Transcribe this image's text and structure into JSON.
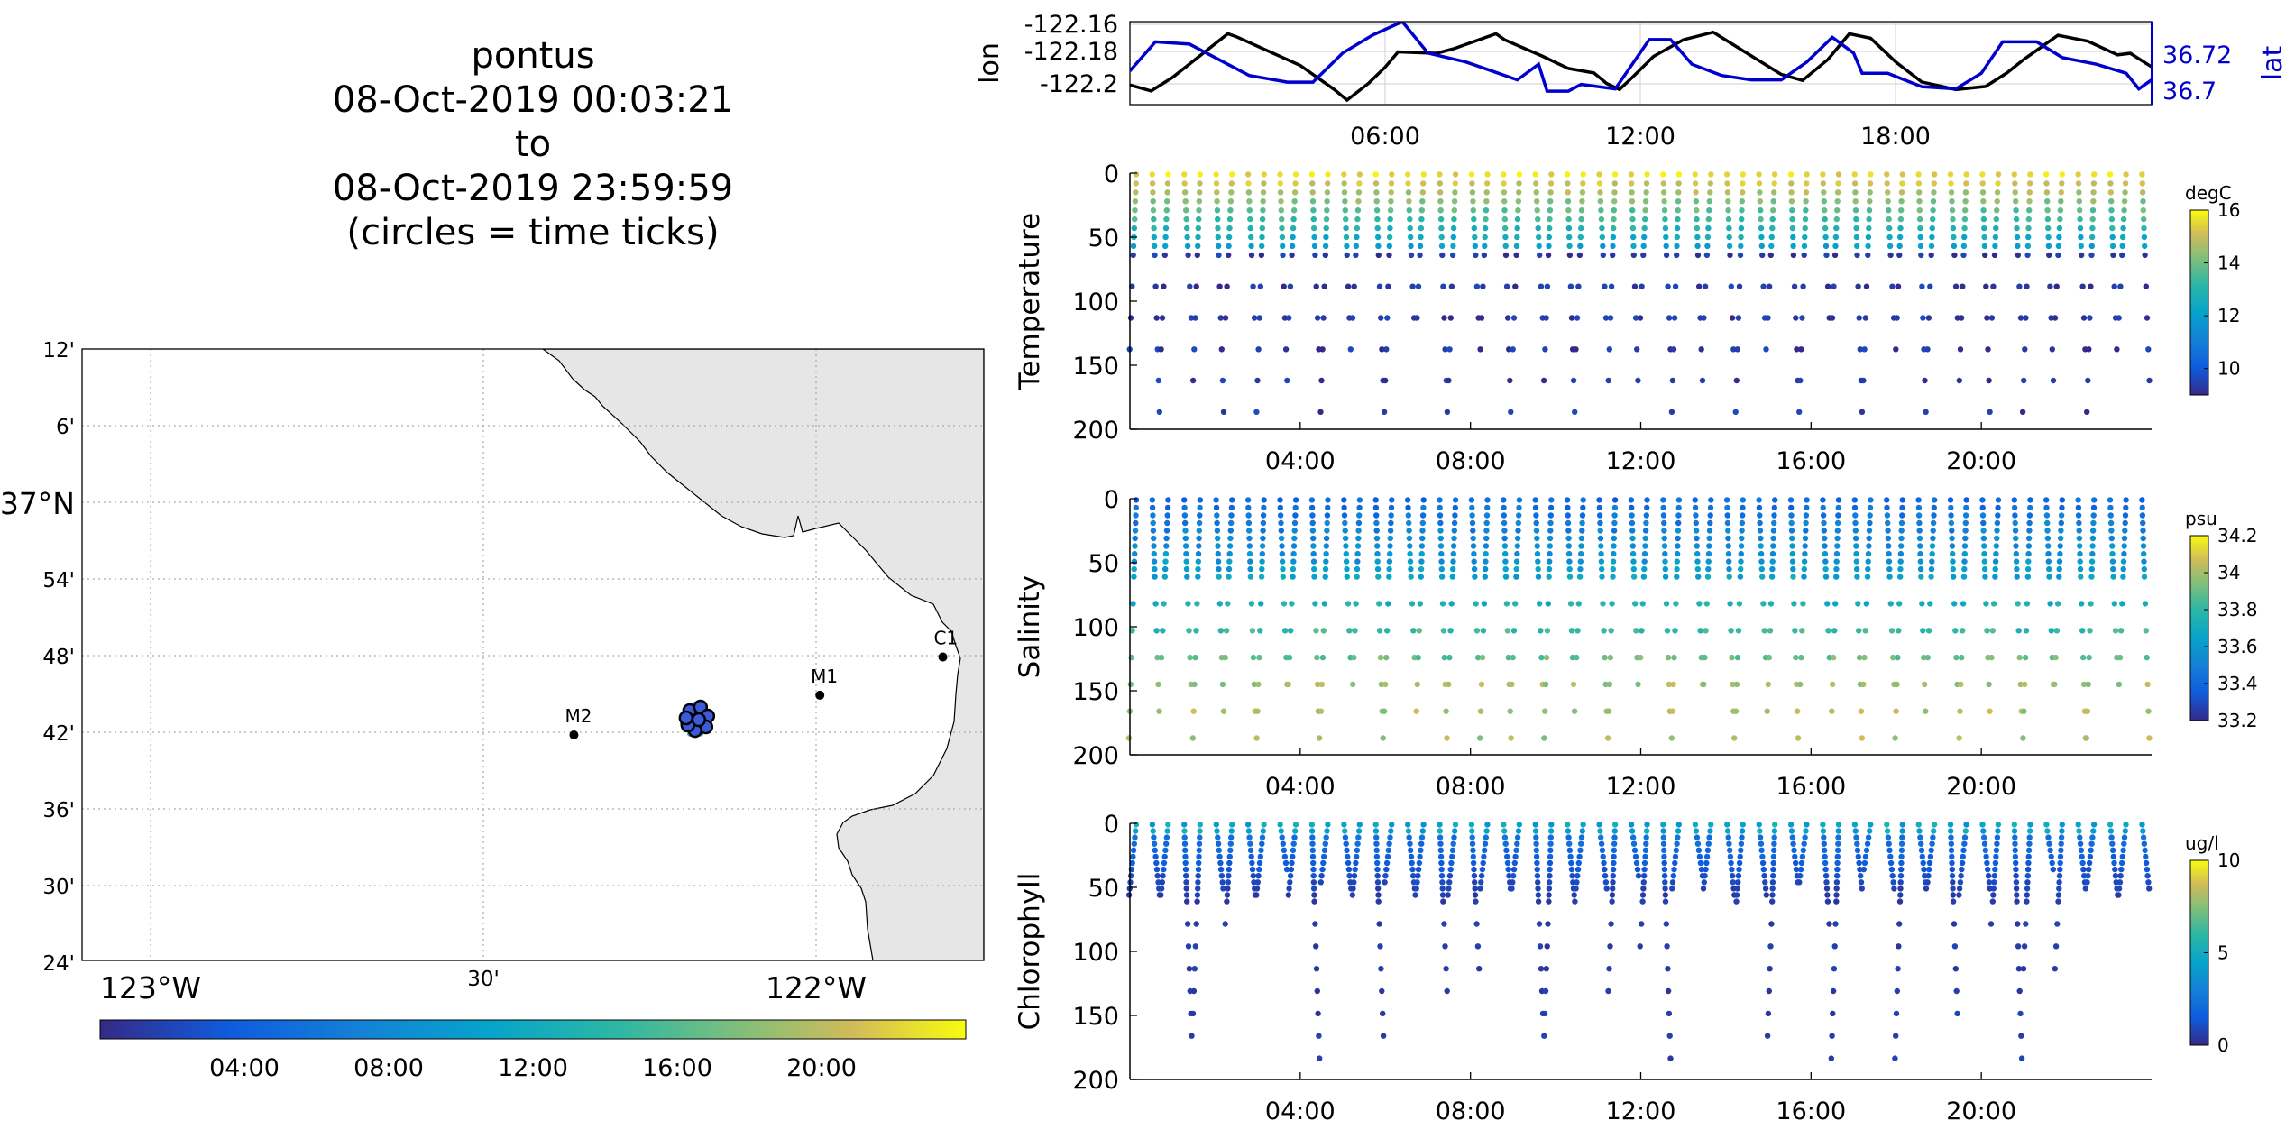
{
  "title": {
    "lines": [
      "pontus",
      "08-Oct-2019 00:03:21",
      "to",
      "08-Oct-2019 23:59:59",
      "(circles = time ticks)"
    ]
  },
  "map": {
    "lat_labels": [
      "12'",
      "6'",
      "37°N",
      "54'",
      "48'",
      "42'",
      "36'",
      "30'",
      "24'"
    ],
    "lon_labels": [
      "123°W",
      "30'",
      "122°W"
    ],
    "stations": [
      {
        "name": "M2",
        "lon": -122.38,
        "lat": 36.695
      },
      {
        "name": "M1",
        "lon": -122.02,
        "lat": 36.747
      },
      {
        "name": "C1",
        "lon": -121.84,
        "lat": 36.797
      }
    ],
    "track_center": {
      "lon": -122.2,
      "lat": 36.715
    },
    "land_color": "#e6e6e6",
    "colorbar_ticks": [
      "04:00",
      "08:00",
      "12:00",
      "16:00",
      "20:00"
    ]
  },
  "chart_data": [
    {
      "type": "line",
      "name": "position",
      "xlabel": "",
      "ylabel": "lon",
      "ylabel_right": "lat",
      "x_ticks": [
        "06:00",
        "12:00",
        "18:00"
      ],
      "y_ticks": [
        "-122.16",
        "-122.18",
        "-122.2"
      ],
      "y2_ticks": [
        "36.72",
        "36.7"
      ],
      "ylim": [
        -122.21,
        -122.155
      ],
      "y2lim": [
        36.693,
        36.73
      ],
      "xlim_hours": [
        0,
        24
      ],
      "series": [
        {
          "name": "lon",
          "color": "#000000",
          "t": [
            0,
            0.5,
            1.0,
            2.3,
            2.5,
            4.0,
            4.8,
            5.1,
            5.6,
            6.0,
            6.3,
            7.2,
            7.6,
            8.6,
            8.8,
            9.7,
            10.3,
            10.9,
            11.2,
            11.5,
            11.8,
            12.3,
            13.0,
            13.7,
            14.5,
            15.3,
            15.8,
            16.4,
            16.9,
            17.4,
            18.0,
            18.6,
            19.4,
            20.1,
            20.6,
            21.0,
            21.8,
            22.5,
            23.2,
            23.5,
            24.0
          ],
          "v": [
            -122.197,
            -122.201,
            -122.192,
            -122.163,
            -122.165,
            -122.184,
            -122.2,
            -122.207,
            -122.196,
            -122.185,
            -122.175,
            -122.176,
            -122.173,
            -122.163,
            -122.167,
            -122.178,
            -122.186,
            -122.189,
            -122.196,
            -122.2,
            -122.192,
            -122.178,
            -122.167,
            -122.162,
            -122.176,
            -122.19,
            -122.194,
            -122.18,
            -122.163,
            -122.166,
            -122.182,
            -122.195,
            -122.2,
            -122.198,
            -122.189,
            -122.18,
            -122.164,
            -122.168,
            -122.177,
            -122.176,
            -122.185
          ]
        },
        {
          "name": "lat",
          "color": "#0000cc",
          "t": [
            0,
            0.6,
            1.4,
            2.2,
            2.8,
            3.7,
            4.3,
            5.0,
            5.7,
            6.4,
            7.0,
            7.9,
            8.5,
            9.1,
            9.6,
            9.8,
            10.3,
            10.6,
            11.4,
            12.2,
            12.7,
            13.2,
            13.9,
            14.6,
            15.3,
            15.9,
            16.5,
            17.0,
            17.2,
            17.8,
            18.6,
            19.4,
            20.0,
            20.5,
            21.3,
            21.9,
            22.7,
            23.4,
            23.7,
            24.0
          ],
          "v": [
            36.708,
            36.721,
            36.72,
            36.712,
            36.706,
            36.703,
            36.703,
            36.716,
            36.724,
            36.73,
            36.716,
            36.712,
            36.708,
            36.704,
            36.711,
            36.699,
            36.699,
            36.702,
            36.7,
            36.722,
            36.722,
            36.711,
            36.706,
            36.704,
            36.704,
            36.712,
            36.723,
            36.716,
            36.707,
            36.707,
            36.701,
            36.7,
            36.707,
            36.721,
            36.721,
            36.714,
            36.711,
            36.707,
            36.7,
            36.704
          ]
        }
      ]
    },
    {
      "type": "scatter",
      "name": "temperature",
      "ylabel": "Temperature",
      "unit": "degC",
      "x_ticks": [
        "04:00",
        "08:00",
        "12:00",
        "16:00",
        "20:00"
      ],
      "y_ticks": [
        "0",
        "50",
        "100",
        "150",
        "200"
      ],
      "ylim": [
        0,
        200
      ],
      "clim": [
        9,
        16
      ],
      "colorbar_ticks": [
        "10",
        "12",
        "14",
        "16"
      ],
      "profile_count": 64,
      "profile_depth_range": [
        120,
        197
      ],
      "sample_spacing_m": 7,
      "surface_value": 15.6,
      "thermocline_depth_m": 55,
      "deep_value": 9.3
    },
    {
      "type": "scatter",
      "name": "salinity",
      "ylabel": "Salinity",
      "unit": "psu",
      "x_ticks": [
        "04:00",
        "08:00",
        "12:00",
        "16:00",
        "20:00"
      ],
      "y_ticks": [
        "0",
        "50",
        "100",
        "150",
        "200"
      ],
      "ylim": [
        0,
        200
      ],
      "clim": [
        33.2,
        34.2
      ],
      "colorbar_ticks": [
        "33.2",
        "33.4",
        "33.6",
        "33.8",
        "34",
        "34.2"
      ],
      "profile_count": 64,
      "profile_depth_range": [
        140,
        200
      ],
      "sample_spacing_m": 6,
      "surface_value": 33.4,
      "deep_value": 34.0
    },
    {
      "type": "scatter",
      "name": "chlorophyll",
      "ylabel": "Chlorophyll",
      "unit": "ug/l",
      "x_ticks": [
        "04:00",
        "08:00",
        "12:00",
        "16:00",
        "20:00"
      ],
      "y_ticks": [
        "0",
        "50",
        "100",
        "150",
        "200"
      ],
      "ylim": [
        0,
        200
      ],
      "clim": [
        0,
        10
      ],
      "colorbar_ticks": [
        "0",
        "5",
        "10"
      ],
      "profile_count": 64,
      "profile_depth_range": [
        40,
        190
      ],
      "sample_spacing_m": 5,
      "surface_value": 3.5,
      "deep_value": 0.3
    }
  ],
  "colors": {
    "axis": "#000000",
    "grid": "#bfbfbf",
    "lon_line": "#000000",
    "lat_line": "#0000cc"
  }
}
